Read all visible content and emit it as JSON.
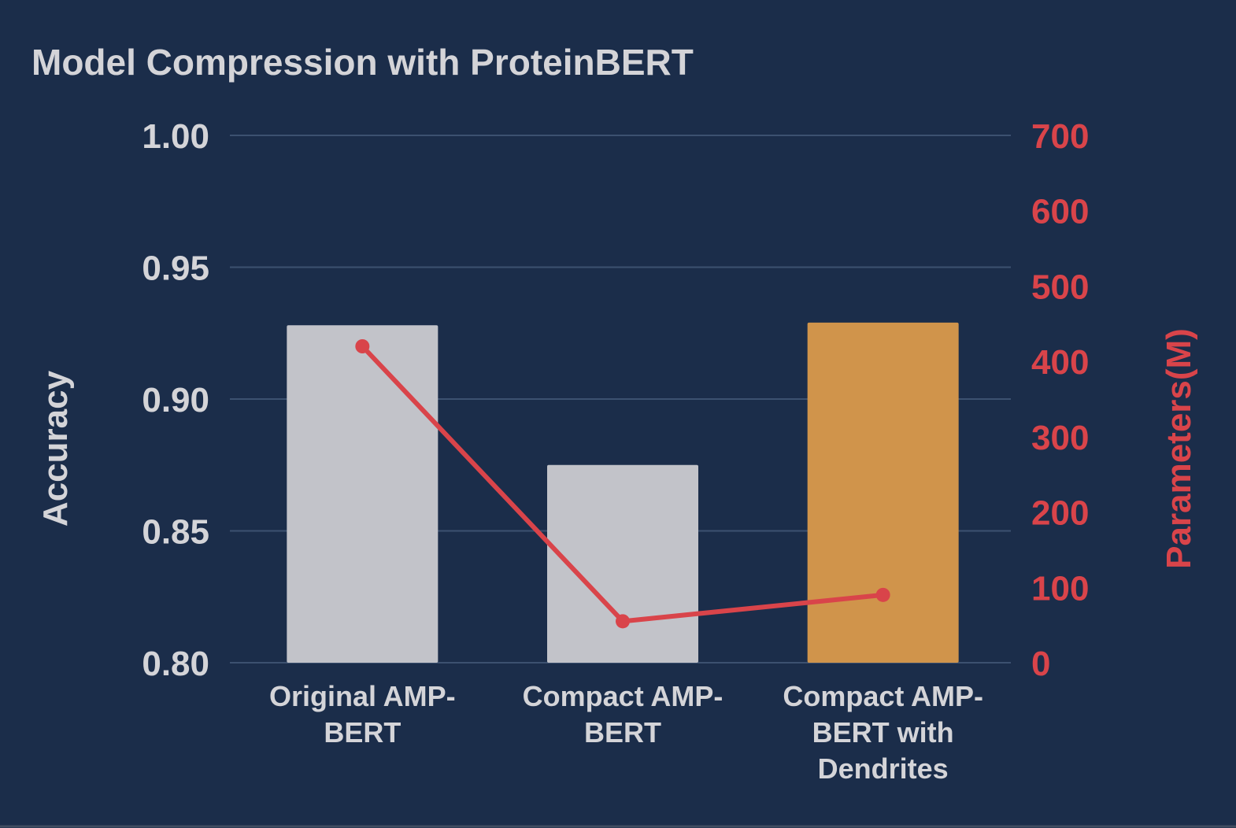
{
  "chart_data": {
    "type": "bar",
    "title": "Model Compression with ProteinBERT",
    "categories": [
      [
        "Original AMP-",
        "BERT"
      ],
      [
        "Compact AMP-",
        "BERT"
      ],
      [
        "Compact AMP-",
        "BERT with",
        "Dendrites"
      ]
    ],
    "series": [
      {
        "type": "bar",
        "axis": "left",
        "values": [
          0.928,
          0.875,
          0.929
        ],
        "colors": [
          "#c2c3c9",
          "#c2c3c9",
          "#d0944b"
        ]
      },
      {
        "type": "line",
        "axis": "right",
        "values": [
          420,
          55,
          90
        ],
        "color": "#d9444a"
      }
    ],
    "y_left": {
      "label": "Accuracy",
      "range": [
        0.8,
        1.0
      ],
      "ticks": [
        "0.80",
        "0.85",
        "0.90",
        "0.95",
        "1.00"
      ],
      "tick_values": [
        0.8,
        0.85,
        0.9,
        0.95,
        1.0
      ]
    },
    "y_right": {
      "label": "Parameters(M)",
      "range": [
        0,
        700
      ],
      "ticks": [
        "0",
        "100",
        "200",
        "300",
        "400",
        "500",
        "600",
        "700"
      ],
      "tick_values": [
        0,
        100,
        200,
        300,
        400,
        500,
        600,
        700
      ]
    },
    "grid": true,
    "legend": "none",
    "colors": {
      "background": "#1b2d4a",
      "text": "#d4d4d8",
      "accent": "#d9444a",
      "grid": "#3c5170"
    }
  }
}
